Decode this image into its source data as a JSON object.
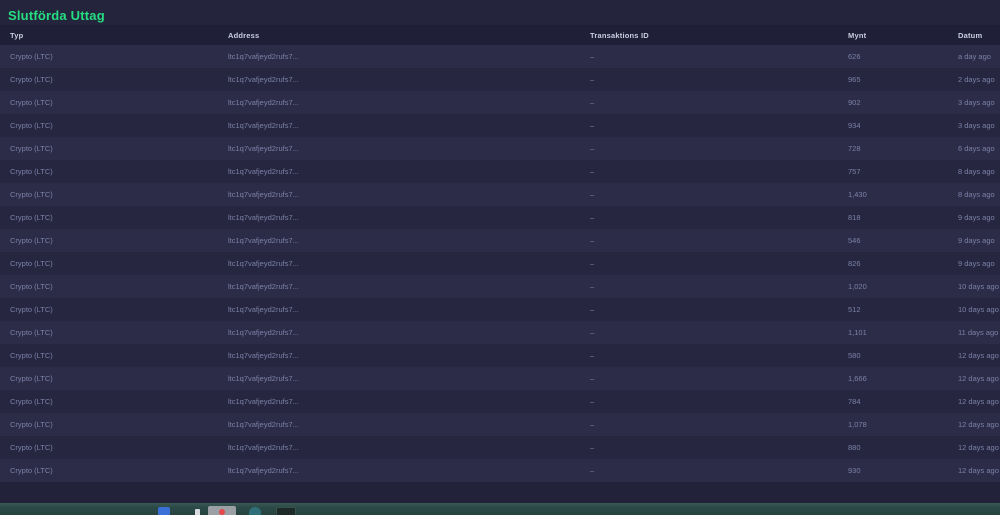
{
  "header": {
    "title": "Slutförda Uttag"
  },
  "colors": {
    "accent_green": "#26de81",
    "page_bg": "#24243d",
    "table_header_bg": "#1f1f37",
    "row_odd_bg": "#2c2c48",
    "row_even_bg": "#262640",
    "muted_text": "#7c81a6",
    "taskbar_bg": "#2b4a47"
  },
  "table": {
    "columns": [
      {
        "key": "typ",
        "label": "Typ"
      },
      {
        "key": "address",
        "label": "Address"
      },
      {
        "key": "txid",
        "label": "Transaktions ID"
      },
      {
        "key": "mynt",
        "label": "Mynt"
      },
      {
        "key": "datum",
        "label": "Datum"
      }
    ],
    "rows": [
      {
        "typ": "Crypto (LTC)",
        "address": "ltc1q7vafjeyd2rufs7...",
        "txid": "–",
        "mynt": "626",
        "datum": "a day ago"
      },
      {
        "typ": "Crypto (LTC)",
        "address": "ltc1q7vafjeyd2rufs7...",
        "txid": "–",
        "mynt": "965",
        "datum": "2 days ago"
      },
      {
        "typ": "Crypto (LTC)",
        "address": "ltc1q7vafjeyd2rufs7...",
        "txid": "–",
        "mynt": "902",
        "datum": "3 days ago"
      },
      {
        "typ": "Crypto (LTC)",
        "address": "ltc1q7vafjeyd2rufs7...",
        "txid": "–",
        "mynt": "934",
        "datum": "3 days ago"
      },
      {
        "typ": "Crypto (LTC)",
        "address": "ltc1q7vafjeyd2rufs7...",
        "txid": "–",
        "mynt": "728",
        "datum": "6 days ago"
      },
      {
        "typ": "Crypto (LTC)",
        "address": "ltc1q7vafjeyd2rufs7...",
        "txid": "–",
        "mynt": "757",
        "datum": "8 days ago"
      },
      {
        "typ": "Crypto (LTC)",
        "address": "ltc1q7vafjeyd2rufs7...",
        "txid": "–",
        "mynt": "1,430",
        "datum": "8 days ago"
      },
      {
        "typ": "Crypto (LTC)",
        "address": "ltc1q7vafjeyd2rufs7...",
        "txid": "–",
        "mynt": "818",
        "datum": "9 days ago"
      },
      {
        "typ": "Crypto (LTC)",
        "address": "ltc1q7vafjeyd2rufs7...",
        "txid": "–",
        "mynt": "546",
        "datum": "9 days ago"
      },
      {
        "typ": "Crypto (LTC)",
        "address": "ltc1q7vafjeyd2rufs7...",
        "txid": "–",
        "mynt": "826",
        "datum": "9 days ago"
      },
      {
        "typ": "Crypto (LTC)",
        "address": "ltc1q7vafjeyd2rufs7...",
        "txid": "–",
        "mynt": "1,020",
        "datum": "10 days ago"
      },
      {
        "typ": "Crypto (LTC)",
        "address": "ltc1q7vafjeyd2rufs7...",
        "txid": "–",
        "mynt": "512",
        "datum": "10 days ago"
      },
      {
        "typ": "Crypto (LTC)",
        "address": "ltc1q7vafjeyd2rufs7...",
        "txid": "–",
        "mynt": "1,101",
        "datum": "11 days ago"
      },
      {
        "typ": "Crypto (LTC)",
        "address": "ltc1q7vafjeyd2rufs7...",
        "txid": "–",
        "mynt": "580",
        "datum": "12 days ago"
      },
      {
        "typ": "Crypto (LTC)",
        "address": "ltc1q7vafjeyd2rufs7...",
        "txid": "–",
        "mynt": "1,666",
        "datum": "12 days ago"
      },
      {
        "typ": "Crypto (LTC)",
        "address": "ltc1q7vafjeyd2rufs7...",
        "txid": "–",
        "mynt": "784",
        "datum": "12 days ago"
      },
      {
        "typ": "Crypto (LTC)",
        "address": "ltc1q7vafjeyd2rufs7...",
        "txid": "–",
        "mynt": "1,078",
        "datum": "12 days ago"
      },
      {
        "typ": "Crypto (LTC)",
        "address": "ltc1q7vafjeyd2rufs7...",
        "txid": "–",
        "mynt": "880",
        "datum": "12 days ago"
      },
      {
        "typ": "Crypto (LTC)",
        "address": "ltc1q7vafjeyd2rufs7...",
        "txid": "–",
        "mynt": "930",
        "datum": "12 days ago"
      }
    ]
  },
  "taskbar": {
    "icons": [
      "browser-icon",
      "cursor-icon",
      "active-window-icon",
      "chat-icon",
      "terminal-icon"
    ]
  }
}
